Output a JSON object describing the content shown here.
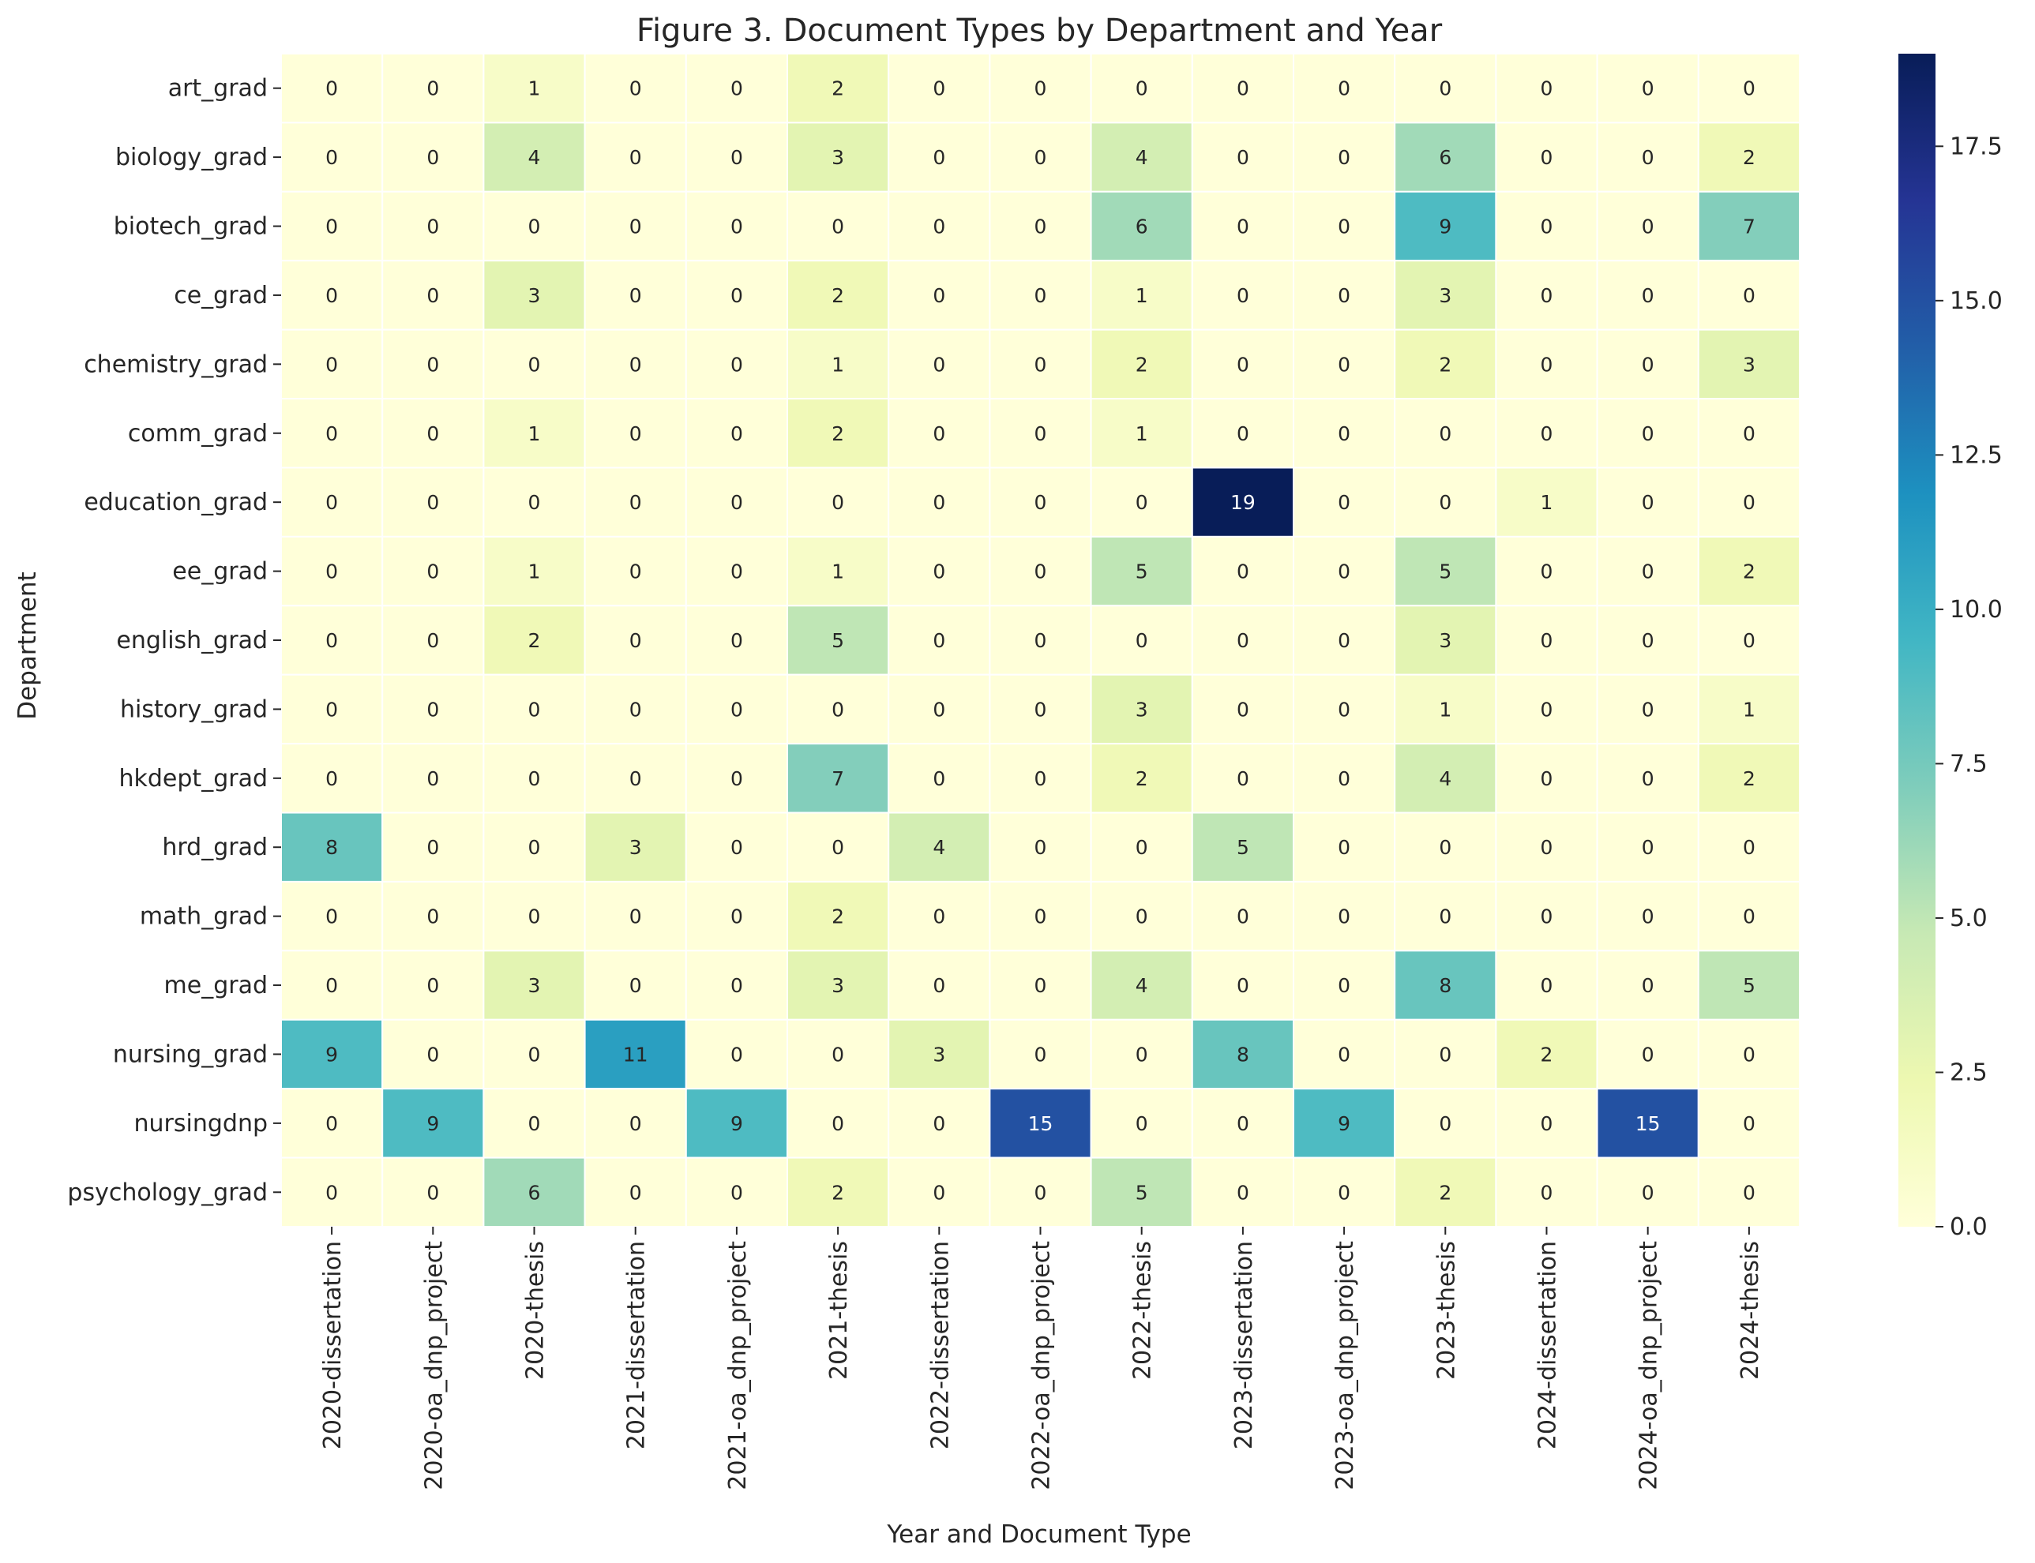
{
  "chart_data": {
    "type": "heatmap",
    "title": "Figure 3. Document Types by Department and Year",
    "xlabel": "Year and Document Type",
    "ylabel": "Department",
    "x_categories": [
      "2020-dissertation",
      "2020-oa_dnp_project",
      "2020-thesis",
      "2021-dissertation",
      "2021-oa_dnp_project",
      "2021-thesis",
      "2022-dissertation",
      "2022-oa_dnp_project",
      "2022-thesis",
      "2023-dissertation",
      "2023-oa_dnp_project",
      "2023-thesis",
      "2024-dissertation",
      "2024-oa_dnp_project",
      "2024-thesis"
    ],
    "y_categories": [
      "art_grad",
      "biology_grad",
      "biotech_grad",
      "ce_grad",
      "chemistry_grad",
      "comm_grad",
      "education_grad",
      "ee_grad",
      "english_grad",
      "history_grad",
      "hkdept_grad",
      "hrd_grad",
      "math_grad",
      "me_grad",
      "nursing_grad",
      "nursingdnp",
      "psychology_grad"
    ],
    "values": [
      [
        0,
        0,
        1,
        0,
        0,
        2,
        0,
        0,
        0,
        0,
        0,
        0,
        0,
        0,
        0
      ],
      [
        0,
        0,
        4,
        0,
        0,
        3,
        0,
        0,
        4,
        0,
        0,
        6,
        0,
        0,
        2
      ],
      [
        0,
        0,
        0,
        0,
        0,
        0,
        0,
        0,
        6,
        0,
        0,
        9,
        0,
        0,
        7
      ],
      [
        0,
        0,
        3,
        0,
        0,
        2,
        0,
        0,
        1,
        0,
        0,
        3,
        0,
        0,
        0
      ],
      [
        0,
        0,
        0,
        0,
        0,
        1,
        0,
        0,
        2,
        0,
        0,
        2,
        0,
        0,
        3
      ],
      [
        0,
        0,
        1,
        0,
        0,
        2,
        0,
        0,
        1,
        0,
        0,
        0,
        0,
        0,
        0
      ],
      [
        0,
        0,
        0,
        0,
        0,
        0,
        0,
        0,
        0,
        19,
        0,
        0,
        1,
        0,
        0
      ],
      [
        0,
        0,
        1,
        0,
        0,
        1,
        0,
        0,
        5,
        0,
        0,
        5,
        0,
        0,
        2
      ],
      [
        0,
        0,
        2,
        0,
        0,
        5,
        0,
        0,
        0,
        0,
        0,
        3,
        0,
        0,
        0
      ],
      [
        0,
        0,
        0,
        0,
        0,
        0,
        0,
        0,
        3,
        0,
        0,
        1,
        0,
        0,
        1
      ],
      [
        0,
        0,
        0,
        0,
        0,
        7,
        0,
        0,
        2,
        0,
        0,
        4,
        0,
        0,
        2
      ],
      [
        8,
        0,
        0,
        3,
        0,
        0,
        4,
        0,
        0,
        5,
        0,
        0,
        0,
        0,
        0
      ],
      [
        0,
        0,
        0,
        0,
        0,
        2,
        0,
        0,
        0,
        0,
        0,
        0,
        0,
        0,
        0
      ],
      [
        0,
        0,
        3,
        0,
        0,
        3,
        0,
        0,
        4,
        0,
        0,
        8,
        0,
        0,
        5
      ],
      [
        9,
        0,
        0,
        11,
        0,
        0,
        3,
        0,
        0,
        8,
        0,
        0,
        2,
        0,
        0
      ],
      [
        0,
        9,
        0,
        0,
        9,
        0,
        0,
        15,
        0,
        0,
        9,
        0,
        0,
        15,
        0
      ],
      [
        0,
        0,
        6,
        0,
        0,
        2,
        0,
        0,
        5,
        0,
        0,
        2,
        0,
        0,
        0
      ]
    ],
    "vmin": 0,
    "vmax": 19,
    "colormap": "YlGnBu",
    "colormap_stops": [
      "#ffffd9",
      "#edf8b1",
      "#c7e9b4",
      "#7fcdbb",
      "#41b6c4",
      "#1d91c0",
      "#225ea8",
      "#253494",
      "#081d58"
    ],
    "colorbar_ticks": [
      "0.0",
      "2.5",
      "5.0",
      "7.5",
      "10.0",
      "12.5",
      "15.0",
      "17.5"
    ],
    "cell_border_color": "#ffffff",
    "annotations": true
  }
}
